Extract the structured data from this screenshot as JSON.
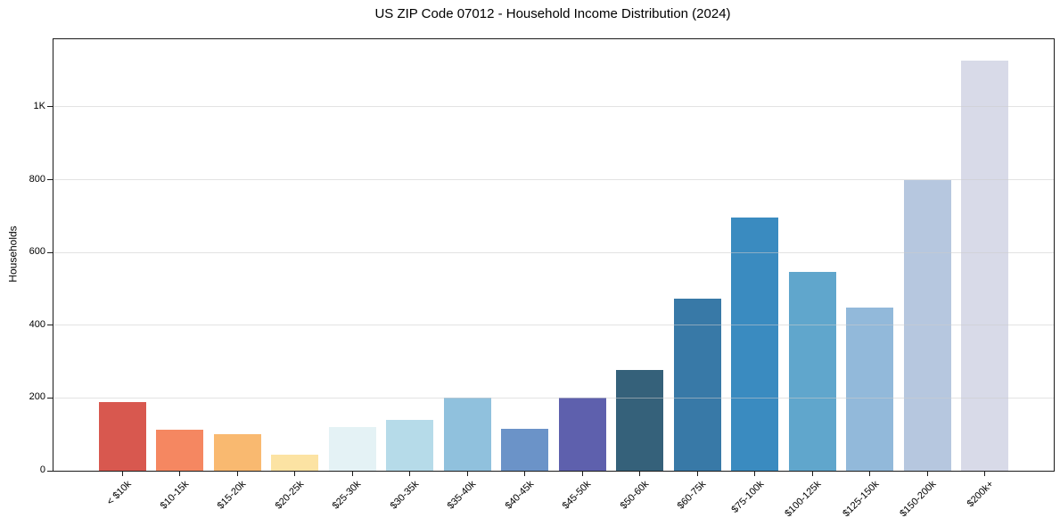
{
  "chart_data": {
    "type": "bar",
    "title": "US ZIP Code 07012 - Household Income Distribution (2024)",
    "xlabel": "",
    "ylabel": "Households",
    "categories": [
      "< $10k",
      "$10-15k",
      "$15-20k",
      "$20-25k",
      "$25-30k",
      "$30-35k",
      "$35-40k",
      "$40-45k",
      "$45-50k",
      "$50-60k",
      "$60-75k",
      "$75-100k",
      "$100-125k",
      "$125-150k",
      "$150-200k",
      "$200k+"
    ],
    "values": [
      188,
      113,
      100,
      44,
      120,
      140,
      202,
      115,
      202,
      278,
      474,
      697,
      547,
      448,
      798,
      1127
    ],
    "bar_colors": [
      "#d8584f",
      "#f58761",
      "#f9b970",
      "#fce3a3",
      "#e4f2f5",
      "#b6dbe9",
      "#90c1dd",
      "#6b93c8",
      "#5e60ad",
      "#35617a",
      "#3879a7",
      "#3a8bc0",
      "#60a6cc",
      "#92b9da",
      "#b6c7df",
      "#d8dae8"
    ],
    "yticks": [
      {
        "value": 0,
        "label": "0"
      },
      {
        "value": 200,
        "label": "200"
      },
      {
        "value": 400,
        "label": "400"
      },
      {
        "value": 600,
        "label": "600"
      },
      {
        "value": 800,
        "label": "800"
      },
      {
        "value": 1000,
        "label": "1K"
      }
    ],
    "ylim": [
      0,
      1186
    ],
    "grid": "horizontal",
    "grid_color": "#e4e4e4",
    "legend": null,
    "xtick_rotation_deg": 45,
    "spine_color": "#1a1a1a",
    "background_color": "#ffffff"
  }
}
